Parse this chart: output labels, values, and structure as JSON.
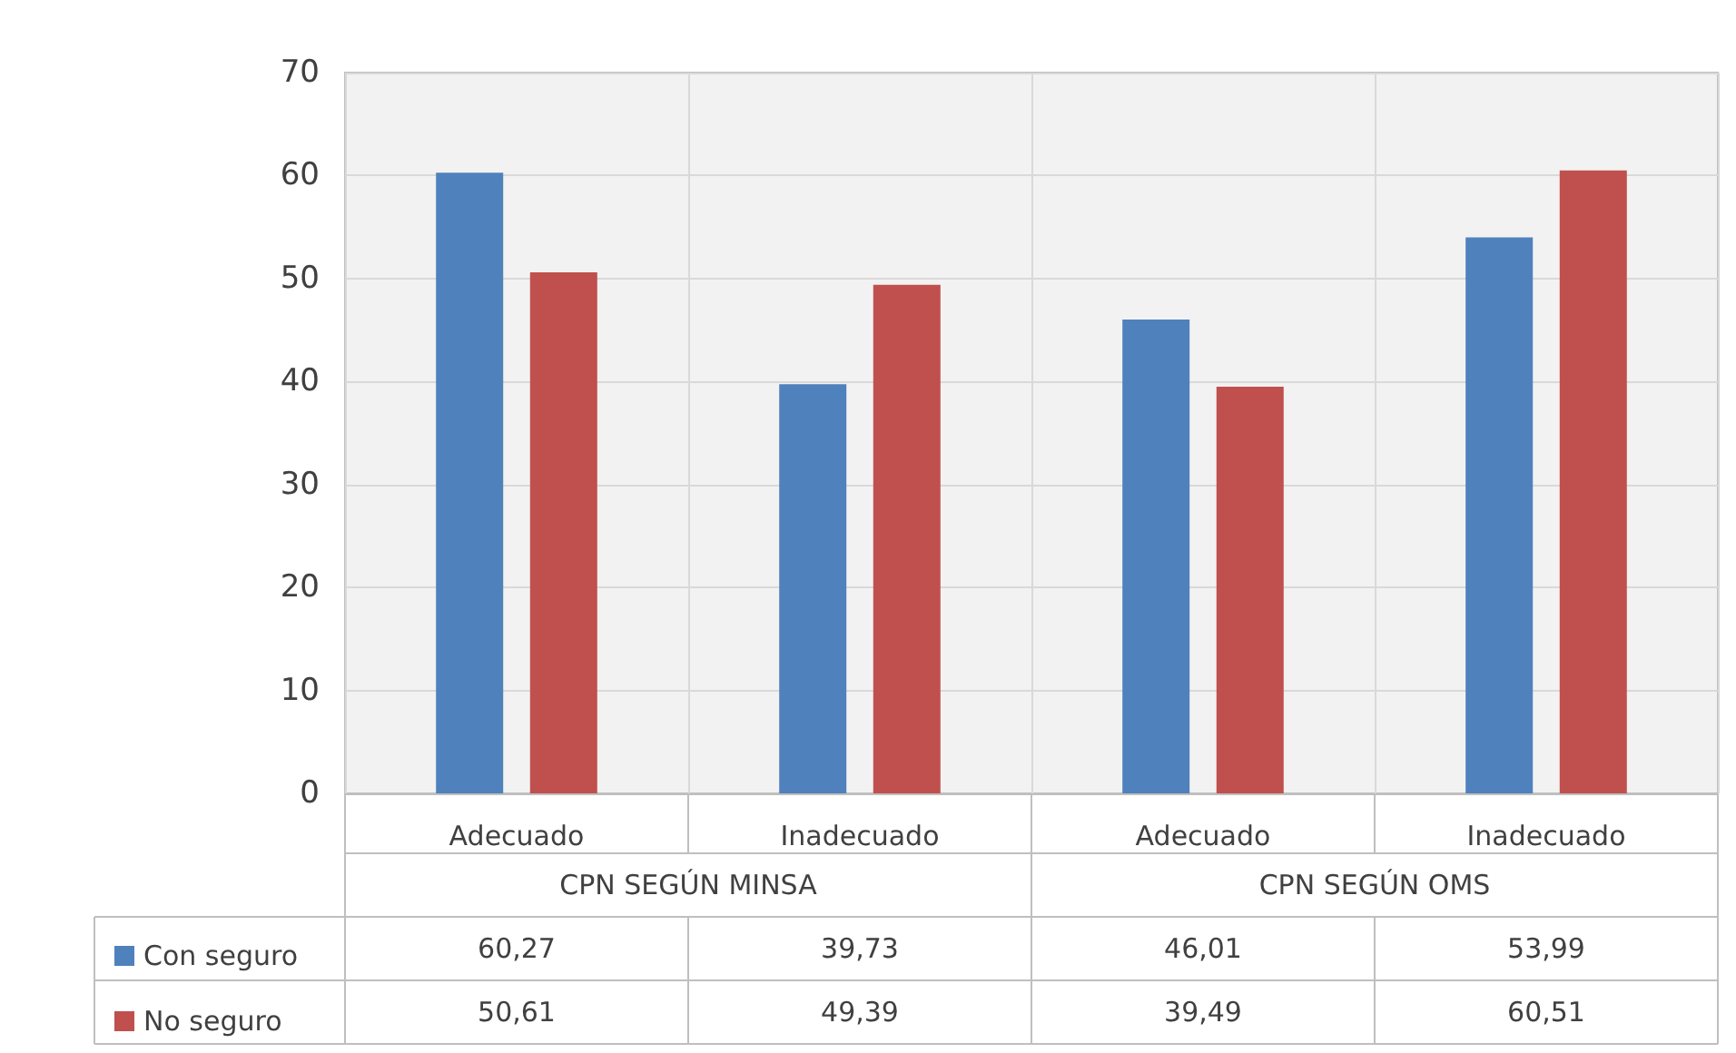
{
  "chart_data": {
    "type": "bar",
    "categories": [
      "Adecuado",
      "Inadecuado",
      "Adecuado",
      "Inadecuado"
    ],
    "annotations": [
      "CPN SEGÚN MINSA",
      "CPN SEGÚN OMS"
    ],
    "series": [
      {
        "name": "Con seguro",
        "color": "#4f81bd",
        "values": [
          60.27,
          39.73,
          46.01,
          53.99
        ],
        "value_labels": [
          "60,27",
          "39,73",
          "46,01",
          "53,99"
        ]
      },
      {
        "name": "No seguro",
        "color": "#c0504d",
        "values": [
          50.61,
          49.39,
          39.49,
          60.51
        ],
        "value_labels": [
          "50,61",
          "49,39",
          "39,49",
          "60,51"
        ]
      }
    ],
    "ylim": [
      0,
      70
    ],
    "yticks": [
      0,
      10,
      20,
      30,
      40,
      50,
      60,
      70
    ],
    "grid": true,
    "legend": "bottom left"
  }
}
